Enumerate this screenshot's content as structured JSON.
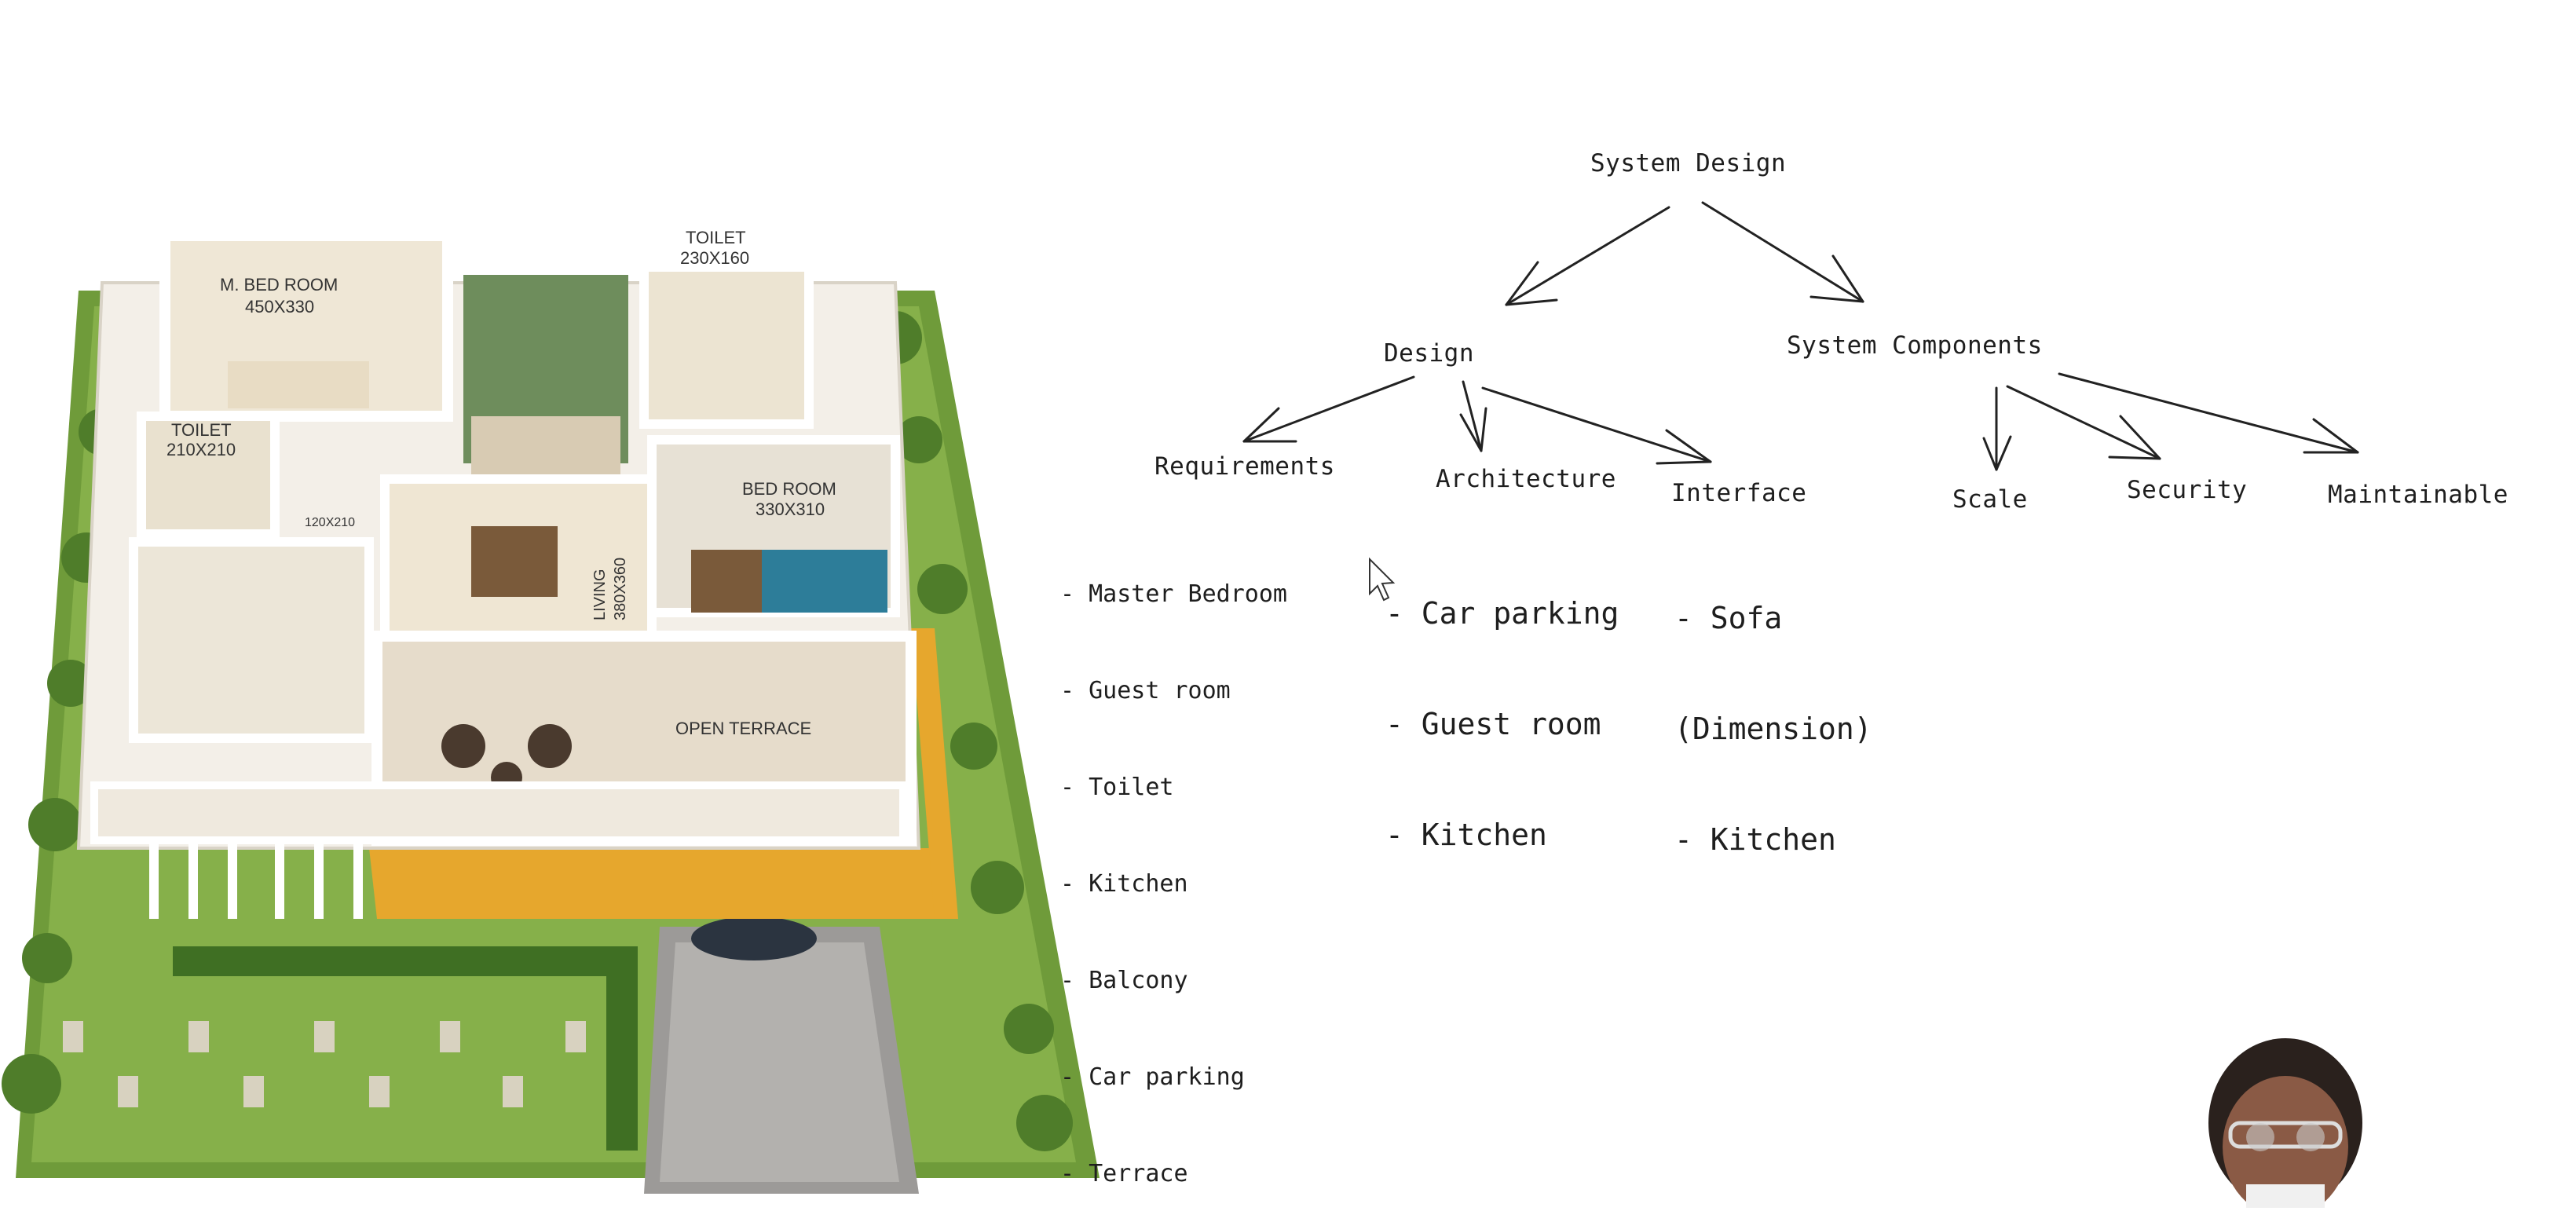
{
  "diagram": {
    "root": "System Design",
    "branches": {
      "design": "Design",
      "components": "System Components"
    },
    "design_children": {
      "requirements": {
        "label": "Requirements",
        "items": [
          "- Master Bedroom",
          "- Guest room",
          "- Toilet",
          "- Kitchen",
          "- Balcony",
          "- Car parking",
          "- Terrace"
        ]
      },
      "architecture": {
        "label": "Architecture",
        "items": [
          "- Car parking",
          "- Guest room",
          "- Kitchen"
        ]
      },
      "interface": {
        "label": "Interface",
        "items": [
          "- Sofa",
          "(Dimension)",
          "- Kitchen"
        ]
      }
    },
    "component_children": {
      "scale": "Scale",
      "security": "Security",
      "maintainable": "Maintainable"
    }
  },
  "floor_plan": {
    "labels": {
      "m_bed_room": "M. BED ROOM",
      "m_bed_room_dim": "450X330",
      "toilet_top": "TOILET",
      "toilet_top_dim": "230X160",
      "toilet_left": "TOILET",
      "toilet_left_dim": "210X210",
      "bed_room": "BED ROOM",
      "bed_room_dim": "330X310",
      "living": "LIVING",
      "living_dim": "380X360",
      "open_terrace": "OPEN TERRACE",
      "small_dim": "120X210"
    }
  },
  "icons": {
    "cursor": "mouse-pointer-icon",
    "presenter": "presenter-webcam"
  }
}
